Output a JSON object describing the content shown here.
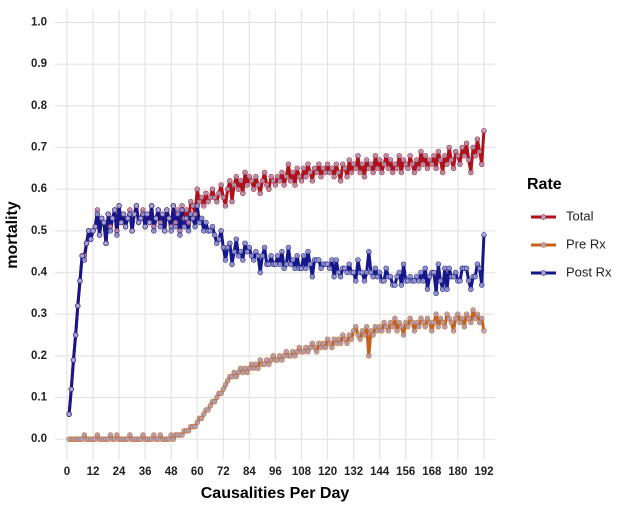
{
  "chart_data": {
    "type": "line",
    "x_label": "Causalities Per Day",
    "y_label": "mortality",
    "legend_title": "Rate",
    "legend": "right",
    "grid": true,
    "xlim": [
      -5.5,
      197.1
    ],
    "ylim": [
      -0.05,
      1.03
    ],
    "xticks": [
      0,
      12,
      24,
      36,
      48,
      60,
      72,
      84,
      96,
      108,
      120,
      132,
      144,
      156,
      168,
      180,
      192
    ],
    "yticks": [
      {
        "value": 0,
        "label": "0.0"
      },
      0.1,
      0.2,
      0.3,
      0.4,
      0.5,
      0.6,
      0.7,
      0.8,
      0.9,
      {
        "value": 1,
        "label": "1.0"
      }
    ],
    "x": [
      1,
      2,
      3,
      4,
      5,
      6,
      7,
      8,
      9,
      10,
      11,
      12,
      13,
      14,
      15,
      16,
      17,
      18,
      19,
      20,
      21,
      22,
      23,
      24,
      25,
      26,
      27,
      28,
      29,
      30,
      31,
      32,
      33,
      34,
      35,
      36,
      37,
      38,
      39,
      40,
      41,
      42,
      43,
      44,
      45,
      46,
      47,
      48,
      49,
      50,
      51,
      52,
      53,
      54,
      55,
      56,
      57,
      58,
      59,
      60,
      61,
      62,
      63,
      64,
      65,
      66,
      67,
      68,
      69,
      70,
      71,
      72,
      73,
      74,
      75,
      76,
      77,
      78,
      79,
      80,
      81,
      82,
      83,
      84,
      85,
      86,
      87,
      88,
      89,
      90,
      91,
      92,
      93,
      94,
      95,
      96,
      97,
      98,
      99,
      100,
      101,
      102,
      103,
      104,
      105,
      106,
      107,
      108,
      109,
      110,
      111,
      112,
      113,
      114,
      115,
      116,
      117,
      118,
      119,
      120,
      121,
      122,
      123,
      124,
      125,
      126,
      127,
      128,
      129,
      130,
      131,
      132,
      133,
      134,
      135,
      136,
      137,
      138,
      139,
      140,
      141,
      142,
      143,
      144,
      145,
      146,
      147,
      148,
      149,
      150,
      151,
      152,
      153,
      154,
      155,
      156,
      157,
      158,
      159,
      160,
      161,
      162,
      163,
      164,
      165,
      166,
      167,
      168,
      169,
      170,
      171,
      172,
      173,
      174,
      175,
      176,
      177,
      178,
      179,
      180,
      181,
      182,
      183,
      184,
      185,
      186,
      187,
      188,
      189,
      190,
      191,
      192
    ],
    "series": [
      {
        "name": "Total",
        "color": "#b0121b",
        "values": [
          0.06,
          0.12,
          0.19,
          0.25,
          0.32,
          0.38,
          0.44,
          0.44,
          0.47,
          0.5,
          0.48,
          0.5,
          0.51,
          0.55,
          0.49,
          0.53,
          0.52,
          0.47,
          0.54,
          0.51,
          0.53,
          0.55,
          0.5,
          0.56,
          0.52,
          0.54,
          0.51,
          0.53,
          0.55,
          0.5,
          0.54,
          0.56,
          0.52,
          0.53,
          0.55,
          0.51,
          0.54,
          0.52,
          0.56,
          0.51,
          0.53,
          0.55,
          0.52,
          0.54,
          0.5,
          0.55,
          0.53,
          0.51,
          0.56,
          0.52,
          0.55,
          0.5,
          0.56,
          0.53,
          0.55,
          0.52,
          0.57,
          0.56,
          0.54,
          0.6,
          0.57,
          0.58,
          0.56,
          0.59,
          0.57,
          0.58,
          0.6,
          0.58,
          0.57,
          0.59,
          0.61,
          0.58,
          0.56,
          0.6,
          0.62,
          0.57,
          0.61,
          0.63,
          0.6,
          0.62,
          0.59,
          0.64,
          0.61,
          0.63,
          0.62,
          0.6,
          0.63,
          0.61,
          0.59,
          0.62,
          0.64,
          0.61,
          0.6,
          0.63,
          0.62,
          0.61,
          0.63,
          0.62,
          0.64,
          0.61,
          0.63,
          0.66,
          0.62,
          0.64,
          0.61,
          0.65,
          0.63,
          0.62,
          0.65,
          0.63,
          0.66,
          0.64,
          0.62,
          0.65,
          0.64,
          0.66,
          0.63,
          0.65,
          0.64,
          0.66,
          0.64,
          0.65,
          0.63,
          0.66,
          0.64,
          0.62,
          0.66,
          0.65,
          0.63,
          0.67,
          0.64,
          0.66,
          0.65,
          0.68,
          0.64,
          0.66,
          0.63,
          0.67,
          0.65,
          0.66,
          0.64,
          0.68,
          0.65,
          0.67,
          0.64,
          0.66,
          0.68,
          0.65,
          0.67,
          0.64,
          0.66,
          0.65,
          0.68,
          0.64,
          0.67,
          0.66,
          0.65,
          0.68,
          0.66,
          0.64,
          0.67,
          0.65,
          0.69,
          0.66,
          0.68,
          0.65,
          0.67,
          0.66,
          0.68,
          0.65,
          0.69,
          0.67,
          0.64,
          0.68,
          0.66,
          0.7,
          0.67,
          0.65,
          0.69,
          0.68,
          0.66,
          0.7,
          0.68,
          0.71,
          0.67,
          0.64,
          0.7,
          0.68,
          0.72,
          0.69,
          0.66,
          0.74
        ]
      },
      {
        "name": "Pre Rx",
        "color": "#c6621c",
        "values": [
          0,
          0,
          0,
          0,
          0,
          0,
          0,
          0.01,
          0,
          0,
          0,
          0,
          0,
          0.01,
          0,
          0,
          0,
          0,
          0,
          0.01,
          0,
          0,
          0.01,
          0,
          0,
          0,
          0,
          0,
          0.01,
          0,
          0,
          0,
          0,
          0,
          0.01,
          0,
          0,
          0,
          0,
          0.01,
          0,
          0,
          0.01,
          0,
          0,
          0,
          0,
          0.01,
          0,
          0.01,
          0.01,
          0.01,
          0.01,
          0.02,
          0.02,
          0.02,
          0.03,
          0.03,
          0.03,
          0.04,
          0.05,
          0.05,
          0.06,
          0.07,
          0.07,
          0.08,
          0.09,
          0.09,
          0.1,
          0.11,
          0.11,
          0.12,
          0.13,
          0.14,
          0.15,
          0.15,
          0.16,
          0.15,
          0.16,
          0.17,
          0.16,
          0.17,
          0.16,
          0.17,
          0.18,
          0.17,
          0.18,
          0.17,
          0.19,
          0.18,
          0.18,
          0.19,
          0.18,
          0.19,
          0.2,
          0.19,
          0.19,
          0.2,
          0.19,
          0.2,
          0.21,
          0.2,
          0.2,
          0.21,
          0.2,
          0.21,
          0.22,
          0.21,
          0.21,
          0.22,
          0.21,
          0.22,
          0.23,
          0.22,
          0.21,
          0.23,
          0.22,
          0.23,
          0.22,
          0.24,
          0.23,
          0.22,
          0.24,
          0.23,
          0.24,
          0.23,
          0.25,
          0.24,
          0.23,
          0.25,
          0.24,
          0.26,
          0.27,
          0.25,
          0.24,
          0.26,
          0.25,
          0.27,
          0.2,
          0.26,
          0.25,
          0.27,
          0.26,
          0.27,
          0.26,
          0.28,
          0.27,
          0.26,
          0.28,
          0.27,
          0.29,
          0.26,
          0.28,
          0.27,
          0.25,
          0.28,
          0.27,
          0.29,
          0.28,
          0.26,
          0.28,
          0.27,
          0.29,
          0.28,
          0.27,
          0.29,
          0.28,
          0.26,
          0.28,
          0.3,
          0.27,
          0.29,
          0.28,
          0.27,
          0.3,
          0.29,
          0.28,
          0.26,
          0.29,
          0.3,
          0.28,
          0.29,
          0.27,
          0.3,
          0.29,
          0.28,
          0.31,
          0.29,
          0.3,
          0.28,
          0.29,
          0.26
        ]
      },
      {
        "name": "Post Rx",
        "color": "#15178a",
        "values": [
          0.06,
          0.12,
          0.19,
          0.25,
          0.32,
          0.38,
          0.44,
          0.43,
          0.47,
          0.5,
          0.48,
          0.5,
          0.51,
          0.54,
          0.49,
          0.53,
          0.52,
          0.47,
          0.54,
          0.5,
          0.53,
          0.55,
          0.49,
          0.56,
          0.52,
          0.54,
          0.51,
          0.53,
          0.54,
          0.5,
          0.54,
          0.56,
          0.52,
          0.53,
          0.54,
          0.51,
          0.54,
          0.52,
          0.56,
          0.5,
          0.53,
          0.55,
          0.51,
          0.54,
          0.5,
          0.55,
          0.53,
          0.5,
          0.56,
          0.51,
          0.54,
          0.49,
          0.55,
          0.51,
          0.53,
          0.5,
          0.54,
          0.53,
          0.51,
          0.56,
          0.52,
          0.53,
          0.5,
          0.52,
          0.5,
          0.5,
          0.51,
          0.49,
          0.47,
          0.48,
          0.5,
          0.46,
          0.43,
          0.46,
          0.47,
          0.42,
          0.45,
          0.48,
          0.44,
          0.45,
          0.43,
          0.47,
          0.45,
          0.46,
          0.44,
          0.43,
          0.45,
          0.44,
          0.4,
          0.44,
          0.46,
          0.42,
          0.42,
          0.44,
          0.42,
          0.42,
          0.44,
          0.42,
          0.45,
          0.41,
          0.42,
          0.46,
          0.42,
          0.43,
          0.41,
          0.44,
          0.41,
          0.41,
          0.44,
          0.41,
          0.45,
          0.42,
          0.39,
          0.43,
          0.43,
          0.43,
          0.41,
          0.42,
          0.42,
          0.42,
          0.41,
          0.43,
          0.39,
          0.43,
          0.4,
          0.39,
          0.41,
          0.41,
          0.4,
          0.42,
          0.4,
          0.4,
          0.38,
          0.43,
          0.4,
          0.4,
          0.38,
          0.4,
          0.45,
          0.4,
          0.39,
          0.41,
          0.39,
          0.4,
          0.38,
          0.38,
          0.41,
          0.39,
          0.39,
          0.37,
          0.37,
          0.39,
          0.4,
          0.37,
          0.42,
          0.38,
          0.38,
          0.39,
          0.38,
          0.38,
          0.39,
          0.38,
          0.4,
          0.38,
          0.41,
          0.36,
          0.39,
          0.4,
          0.4,
          0.35,
          0.42,
          0.38,
          0.36,
          0.41,
          0.36,
          0.41,
          0.39,
          0.39,
          0.4,
          0.38,
          0.38,
          0.41,
          0.41,
          0.41,
          0.38,
          0.36,
          0.39,
          0.39,
          0.42,
          0.41,
          0.37,
          0.49
        ]
      }
    ]
  }
}
